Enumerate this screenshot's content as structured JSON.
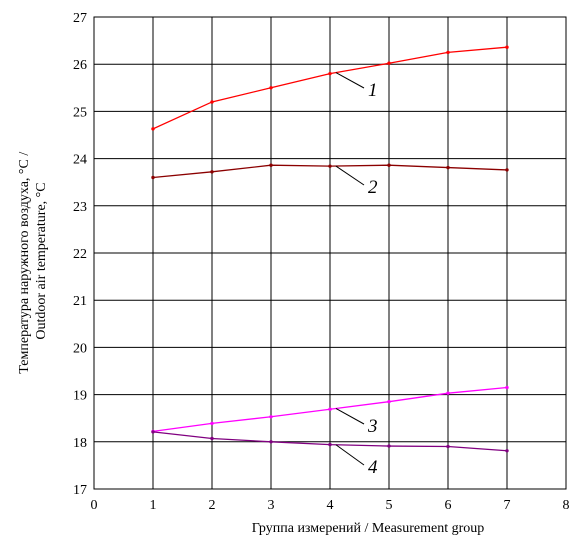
{
  "chart_data": {
    "type": "line",
    "xlabel": "Группа измерений / Measurement group",
    "ylabel_line1": "Температура наружного воздуха, °C /",
    "ylabel_line2": "Outdoor air temperature, °C",
    "xlim": [
      0,
      8
    ],
    "ylim": [
      17,
      27
    ],
    "x_ticks": [
      "0",
      "1",
      "2",
      "3",
      "4",
      "5",
      "6",
      "7",
      "8"
    ],
    "y_ticks": [
      "17",
      "18",
      "19",
      "20",
      "21",
      "22",
      "23",
      "24",
      "25",
      "26",
      "27"
    ],
    "grid": true,
    "x": [
      1,
      2,
      3,
      4,
      5,
      6,
      7
    ],
    "series": [
      {
        "name": "1",
        "color": "#ff0000",
        "values": [
          24.63,
          25.2,
          25.5,
          25.8,
          26.02,
          26.25,
          26.36
        ]
      },
      {
        "name": "2",
        "color": "#8b0000",
        "values": [
          23.6,
          23.72,
          23.86,
          23.84,
          23.86,
          23.81,
          23.76
        ]
      },
      {
        "name": "3",
        "color": "#ff00ff",
        "values": [
          18.22,
          18.39,
          18.53,
          18.69,
          18.85,
          19.03,
          19.15
        ]
      },
      {
        "name": "4",
        "color": "#800080",
        "values": [
          18.21,
          18.07,
          18.0,
          17.94,
          17.91,
          17.9,
          17.81
        ]
      }
    ]
  }
}
